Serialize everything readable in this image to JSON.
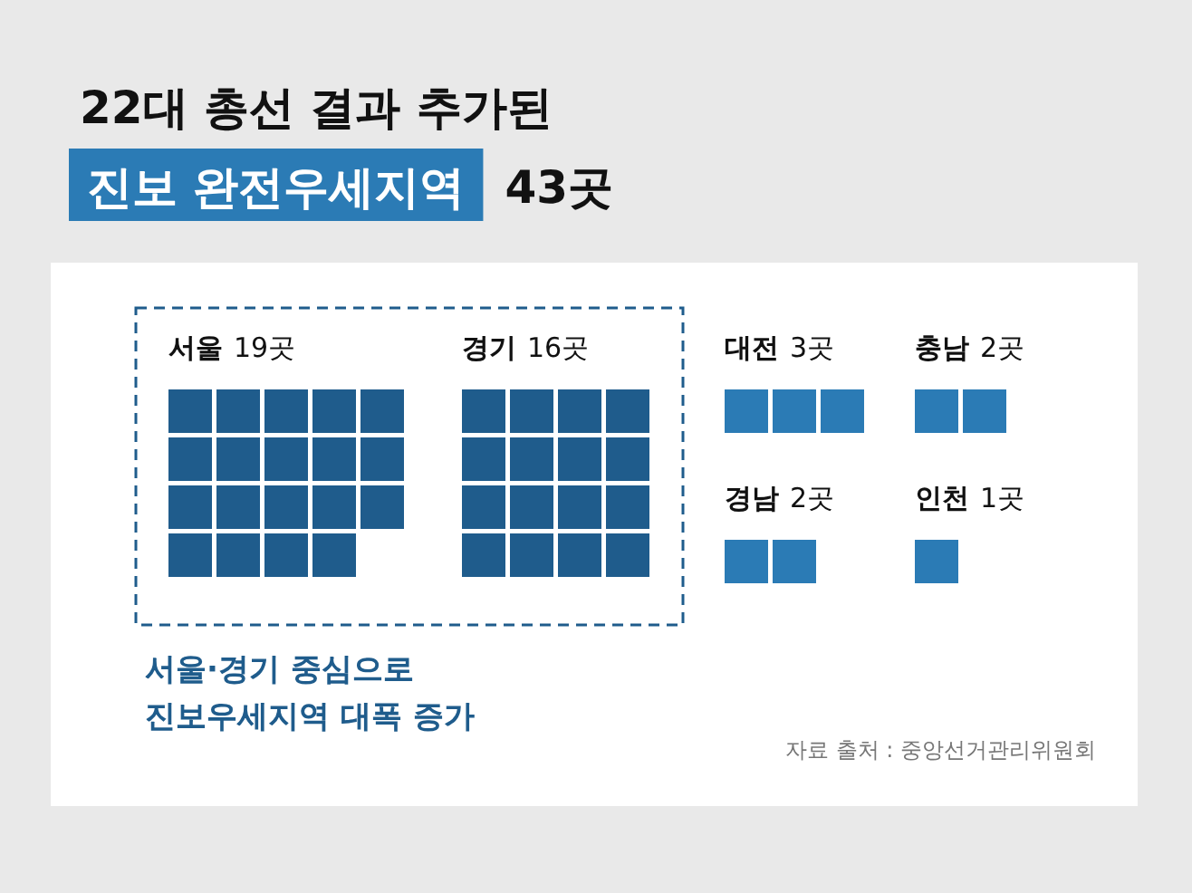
{
  "chart_data": {
    "type": "other",
    "title": "22대 총선 결과 추가된",
    "subtitle": "진보 완전우세지역 43곳",
    "categories": [
      "서울",
      "경기",
      "대전",
      "충남",
      "경남",
      "인천"
    ],
    "values": [
      19,
      16,
      3,
      2,
      2,
      1
    ],
    "value_labels": [
      "19곳",
      "16곳",
      "3곳",
      "2곳",
      "2곳",
      "1곳"
    ],
    "colors": [
      "#1f5c8c",
      "#1f5c8c",
      "#2b7bb5",
      "#2b7bb5",
      "#2b7bb5",
      "#2b7bb5"
    ],
    "annotations": [
      "서울·경기 중심으로\n진보우세지역 대폭 증가",
      "자료 출처 : 중앙선거관리위원회"
    ]
  }
}
